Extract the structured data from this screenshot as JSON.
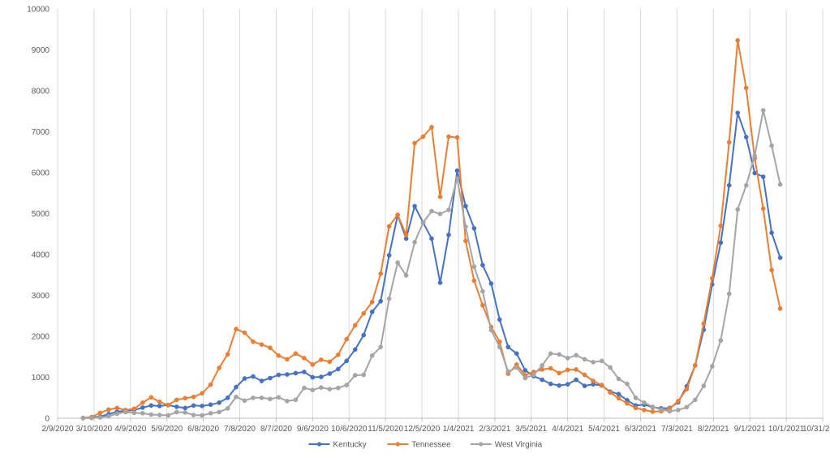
{
  "chart_data": {
    "type": "line",
    "title": "",
    "xlabel": "",
    "ylabel": "",
    "ylim": [
      0,
      10000
    ],
    "yticks": [
      0,
      1000,
      2000,
      3000,
      4000,
      5000,
      6000,
      7000,
      8000,
      9000,
      10000
    ],
    "xlim": [
      "2/9/2020",
      "10/31/2021"
    ],
    "xticks": [
      "2/9/2020",
      "3/10/2020",
      "4/9/2020",
      "5/9/2020",
      "6/8/2020",
      "7/8/2020",
      "8/7/2020",
      "9/6/2020",
      "10/6/2020",
      "11/5/2020",
      "12/5/2020",
      "1/4/2021",
      "2/3/2021",
      "3/5/2021",
      "4/4/2021",
      "5/4/2021",
      "6/3/2021",
      "7/3/2021",
      "8/2/2021",
      "9/1/2021",
      "10/1/2021",
      "10/31/2021"
    ],
    "grid": "vertical",
    "legend_position": "bottom",
    "x": [
      "2020-03-01",
      "2020-03-08",
      "2020-03-15",
      "2020-03-22",
      "2020-03-29",
      "2020-04-05",
      "2020-04-12",
      "2020-04-19",
      "2020-04-26",
      "2020-05-03",
      "2020-05-10",
      "2020-05-17",
      "2020-05-24",
      "2020-05-31",
      "2020-06-07",
      "2020-06-14",
      "2020-06-21",
      "2020-06-28",
      "2020-07-05",
      "2020-07-12",
      "2020-07-19",
      "2020-07-26",
      "2020-08-02",
      "2020-08-09",
      "2020-08-16",
      "2020-08-23",
      "2020-08-30",
      "2020-09-06",
      "2020-09-13",
      "2020-09-20",
      "2020-09-27",
      "2020-10-04",
      "2020-10-11",
      "2020-10-18",
      "2020-10-25",
      "2020-11-01",
      "2020-11-08",
      "2020-11-15",
      "2020-11-22",
      "2020-11-29",
      "2020-12-06",
      "2020-12-13",
      "2020-12-20",
      "2020-12-27",
      "2021-01-03",
      "2021-01-10",
      "2021-01-17",
      "2021-01-24",
      "2021-01-31",
      "2021-02-07",
      "2021-02-14",
      "2021-02-21",
      "2021-02-28",
      "2021-03-07",
      "2021-03-14",
      "2021-03-21",
      "2021-03-28",
      "2021-04-04",
      "2021-04-11",
      "2021-04-18",
      "2021-04-25",
      "2021-05-02",
      "2021-05-09",
      "2021-05-16",
      "2021-05-23",
      "2021-05-30",
      "2021-06-06",
      "2021-06-13",
      "2021-06-20",
      "2021-06-27",
      "2021-07-04",
      "2021-07-11",
      "2021-07-18",
      "2021-07-25",
      "2021-08-01",
      "2021-08-08",
      "2021-08-15",
      "2021-08-22",
      "2021-08-29",
      "2021-09-05",
      "2021-09-12",
      "2021-09-19",
      "2021-09-26"
    ],
    "series": [
      {
        "name": "Kentucky",
        "color": "#4472C4",
        "values": [
          5,
          20,
          40,
          100,
          160,
          180,
          200,
          260,
          310,
          300,
          320,
          280,
          250,
          310,
          300,
          330,
          380,
          500,
          760,
          970,
          1020,
          910,
          980,
          1060,
          1070,
          1100,
          1130,
          1000,
          1010,
          1090,
          1200,
          1400,
          1680,
          2030,
          2600,
          2860,
          3980,
          4960,
          4390,
          5180,
          4780,
          4390,
          3310,
          4480,
          6050,
          5180,
          4640,
          3740,
          3290,
          2410,
          1740,
          1580,
          1170,
          1030,
          940,
          840,
          800,
          830,
          940,
          790,
          830,
          800,
          650,
          590,
          440,
          310,
          330,
          270,
          240,
          250,
          390,
          780,
          1290,
          2160,
          3270,
          4290,
          5690,
          7460,
          6870,
          5990,
          5900,
          4530,
          3920
        ]
      },
      {
        "name": "Tennessee",
        "color": "#ED7D31",
        "values": [
          5,
          30,
          130,
          210,
          250,
          200,
          230,
          380,
          510,
          400,
          320,
          450,
          490,
          520,
          610,
          820,
          1230,
          1560,
          2180,
          2090,
          1870,
          1800,
          1720,
          1530,
          1440,
          1580,
          1470,
          1310,
          1430,
          1380,
          1550,
          1930,
          2270,
          2560,
          2840,
          3530,
          4690,
          4970,
          4480,
          6720,
          6880,
          7110,
          5410,
          6880,
          6860,
          4330,
          3360,
          2760,
          2230,
          1870,
          1090,
          1310,
          1050,
          1130,
          1190,
          1220,
          1100,
          1180,
          1190,
          1060,
          910,
          810,
          630,
          490,
          360,
          250,
          200,
          160,
          170,
          230,
          420,
          710,
          1290,
          2310,
          3420,
          4700,
          6740,
          9230,
          8070,
          6350,
          5120,
          3620,
          2680
        ]
      },
      {
        "name": "West Virginia",
        "color": "#A5A5A5",
        "values": [
          0,
          5,
          20,
          50,
          110,
          150,
          130,
          120,
          90,
          80,
          70,
          150,
          140,
          80,
          70,
          120,
          150,
          240,
          520,
          430,
          500,
          500,
          470,
          510,
          420,
          450,
          740,
          690,
          750,
          710,
          740,
          810,
          1050,
          1060,
          1530,
          1740,
          2920,
          3800,
          3490,
          4300,
          4780,
          5060,
          4990,
          5090,
          5860,
          4680,
          3700,
          3100,
          2150,
          1740,
          1140,
          1240,
          980,
          1060,
          1290,
          1580,
          1560,
          1470,
          1540,
          1440,
          1370,
          1400,
          1240,
          960,
          840,
          500,
          380,
          280,
          210,
          170,
          200,
          270,
          450,
          790,
          1270,
          1900,
          3040,
          5100,
          5690,
          6410,
          7520,
          6660,
          5710
        ]
      }
    ]
  }
}
